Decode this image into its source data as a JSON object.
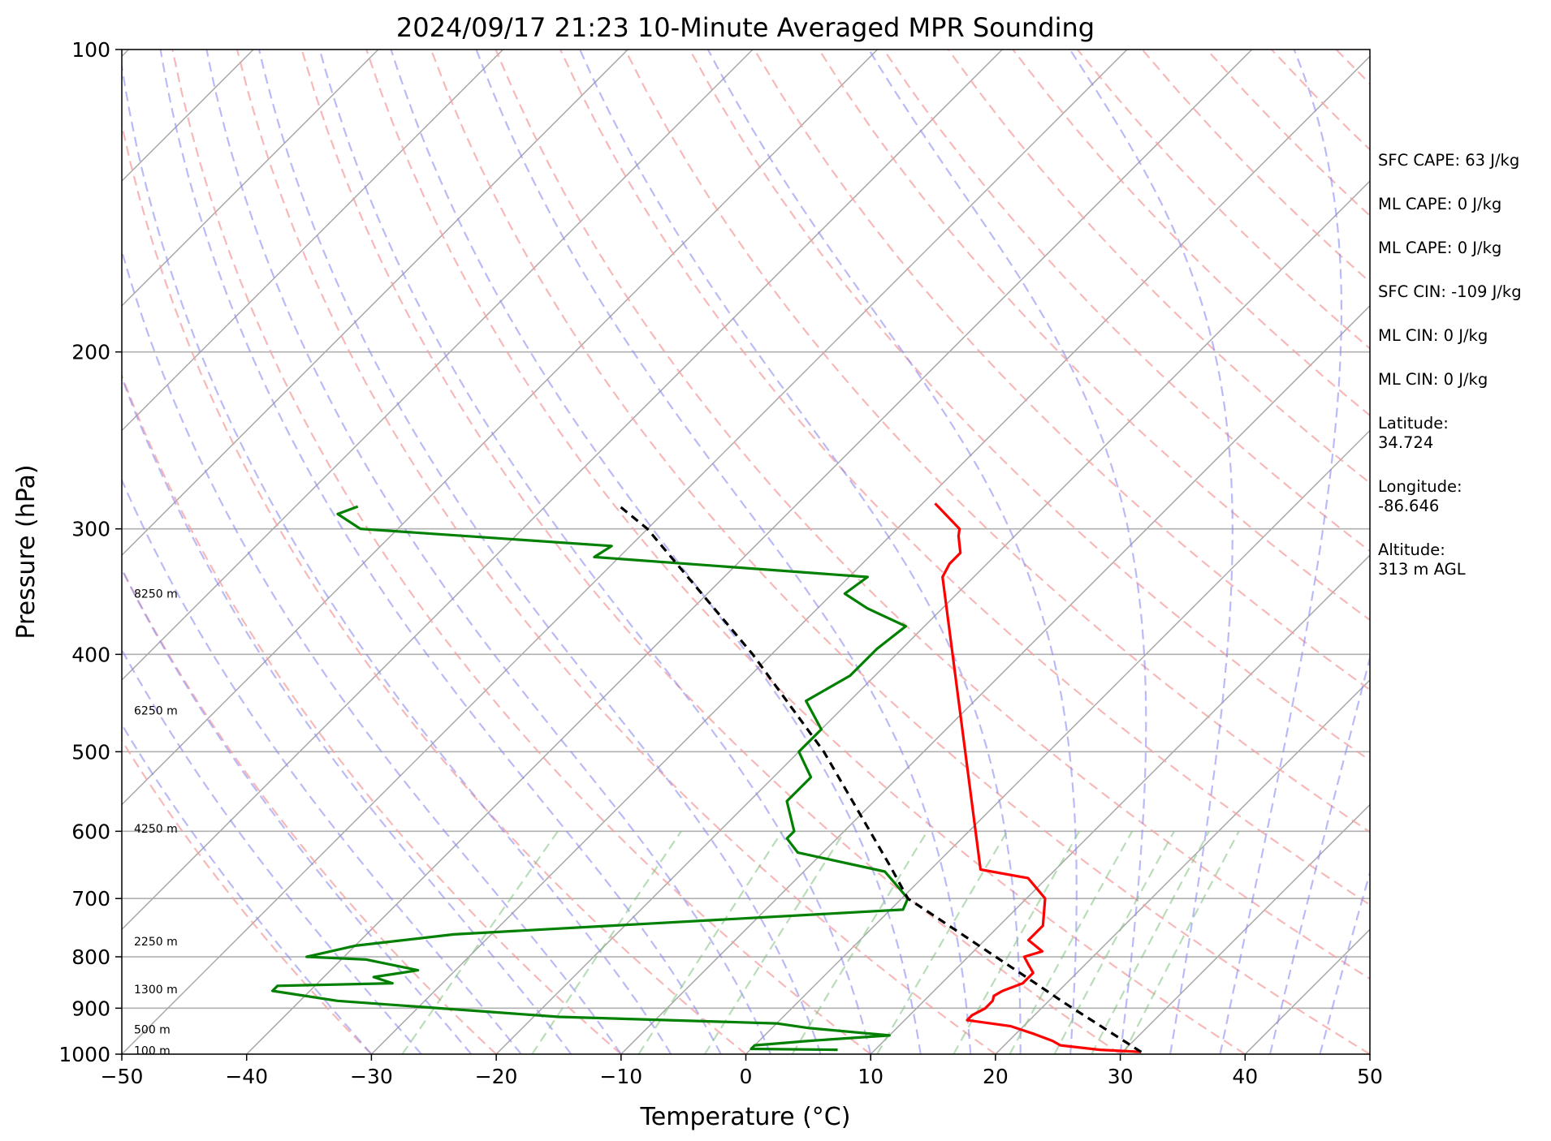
{
  "chart_data": {
    "type": "line",
    "title": "2024/09/17 21:23 10-Minute Averaged MPR Sounding",
    "xlabel": "Temperature (°C)",
    "ylabel": "Pressure (hPa)",
    "xlim": [
      -50,
      50
    ],
    "ylim": [
      1000,
      100
    ],
    "y_scale": "log",
    "skew": "skew-T log-p",
    "grid": true,
    "x_ticks": [
      "−50",
      "−40",
      "−30",
      "−20",
      "−10",
      "0",
      "10",
      "20",
      "30",
      "40",
      "50"
    ],
    "y_ticks": [
      "100",
      "200",
      "300",
      "400",
      "500",
      "600",
      "700",
      "800",
      "900",
      "1000"
    ],
    "height_labels": [
      {
        "label": "100 m",
        "p": 992
      },
      {
        "label": "500 m",
        "p": 945
      },
      {
        "label": "1300 m",
        "p": 862
      },
      {
        "label": "2250 m",
        "p": 772
      },
      {
        "label": "4250 m",
        "p": 596
      },
      {
        "label": "6250 m",
        "p": 455
      },
      {
        "label": "8250 m",
        "p": 348
      }
    ],
    "series": [
      {
        "role": "temperature",
        "color": "#ff0000",
        "points": [
          {
            "p": 995,
            "t": 31.5
          },
          {
            "p": 990,
            "t": 28.0
          },
          {
            "p": 980,
            "t": 24.5
          },
          {
            "p": 970,
            "t": 23.5
          },
          {
            "p": 955,
            "t": 21.5
          },
          {
            "p": 938,
            "t": 19.0
          },
          {
            "p": 925,
            "t": 15.0
          },
          {
            "p": 915,
            "t": 15.0
          },
          {
            "p": 900,
            "t": 15.5
          },
          {
            "p": 885,
            "t": 15.5
          },
          {
            "p": 875,
            "t": 15.2
          },
          {
            "p": 865,
            "t": 15.5
          },
          {
            "p": 850,
            "t": 16.5
          },
          {
            "p": 830,
            "t": 16.5
          },
          {
            "p": 815,
            "t": 15.5
          },
          {
            "p": 800,
            "t": 14.5
          },
          {
            "p": 790,
            "t": 15.5
          },
          {
            "p": 770,
            "t": 13.5
          },
          {
            "p": 745,
            "t": 13.5
          },
          {
            "p": 700,
            "t": 11.5
          },
          {
            "p": 668,
            "t": 8.5
          },
          {
            "p": 655,
            "t": 4.0
          },
          {
            "p": 335,
            "t": -22.5
          },
          {
            "p": 325,
            "t": -23.0
          },
          {
            "p": 317,
            "t": -23.0
          },
          {
            "p": 305,
            "t": -24.5
          },
          {
            "p": 300,
            "t": -25.0
          },
          {
            "p": 283,
            "t": -29.0
          }
        ]
      },
      {
        "role": "dewpoint",
        "color": "#008000",
        "points": [
          {
            "p": 990,
            "t": 7.0
          },
          {
            "p": 988,
            "t": 0.0
          },
          {
            "p": 980,
            "t": 0.0
          },
          {
            "p": 970,
            "t": 4.0
          },
          {
            "p": 958,
            "t": 10.0
          },
          {
            "p": 942,
            "t": 3.0
          },
          {
            "p": 932,
            "t": 0.0
          },
          {
            "p": 918,
            "t": -18.0
          },
          {
            "p": 885,
            "t": -37.0
          },
          {
            "p": 865,
            "t": -43.0
          },
          {
            "p": 855,
            "t": -43.0
          },
          {
            "p": 850,
            "t": -34.0
          },
          {
            "p": 838,
            "t": -36.0
          },
          {
            "p": 825,
            "t": -33.0
          },
          {
            "p": 805,
            "t": -38.0
          },
          {
            "p": 800,
            "t": -43.0
          },
          {
            "p": 780,
            "t": -40.0
          },
          {
            "p": 760,
            "t": -33.0
          },
          {
            "p": 718,
            "t": 1.0
          },
          {
            "p": 700,
            "t": 0.5
          },
          {
            "p": 658,
            "t": -3.5
          },
          {
            "p": 630,
            "t": -12.0
          },
          {
            "p": 610,
            "t": -14.0
          },
          {
            "p": 600,
            "t": -14.0
          },
          {
            "p": 560,
            "t": -17.0
          },
          {
            "p": 530,
            "t": -17.0
          },
          {
            "p": 500,
            "t": -20.0
          },
          {
            "p": 475,
            "t": -20.0
          },
          {
            "p": 445,
            "t": -23.5
          },
          {
            "p": 420,
            "t": -22.0
          },
          {
            "p": 395,
            "t": -22.0
          },
          {
            "p": 375,
            "t": -21.5
          },
          {
            "p": 360,
            "t": -26.0
          },
          {
            "p": 348,
            "t": -29.0
          },
          {
            "p": 335,
            "t": -28.5
          },
          {
            "p": 320,
            "t": -52.0
          },
          {
            "p": 312,
            "t": -51.5
          },
          {
            "p": 300,
            "t": -73.0
          },
          {
            "p": 290,
            "t": -76.0
          },
          {
            "p": 285,
            "t": -75.0
          }
        ]
      },
      {
        "role": "parcel",
        "color": "#000000",
        "dashed": true,
        "points": [
          {
            "p": 995,
            "t": 31.5
          },
          {
            "p": 890,
            "t": 21.5
          },
          {
            "p": 845,
            "t": 17.0
          },
          {
            "p": 720,
            "t": 3.0
          },
          {
            "p": 700,
            "t": 0.5
          },
          {
            "p": 650,
            "t": -3.5
          },
          {
            "p": 500,
            "t": -18.0
          },
          {
            "p": 400,
            "t": -31.5
          },
          {
            "p": 300,
            "t": -50.0
          },
          {
            "p": 285,
            "t": -54.0
          }
        ]
      }
    ]
  },
  "stats": {
    "sfc_cape": "SFC CAPE: 63 J/kg",
    "ml_cape_1": "ML CAPE: 0 J/kg",
    "ml_cape_2": "ML CAPE: 0 J/kg",
    "sfc_cin": "SFC CIN: -109 J/kg",
    "ml_cin_1": "ML CIN: 0 J/kg",
    "ml_cin_2": "ML CIN: 0 J/kg",
    "latitude_label": "Latitude:",
    "latitude_value": "34.724",
    "longitude_label": "Longitude:",
    "longitude_value": "-86.646",
    "altitude_label": "Altitude:",
    "altitude_value": "313 m AGL"
  }
}
